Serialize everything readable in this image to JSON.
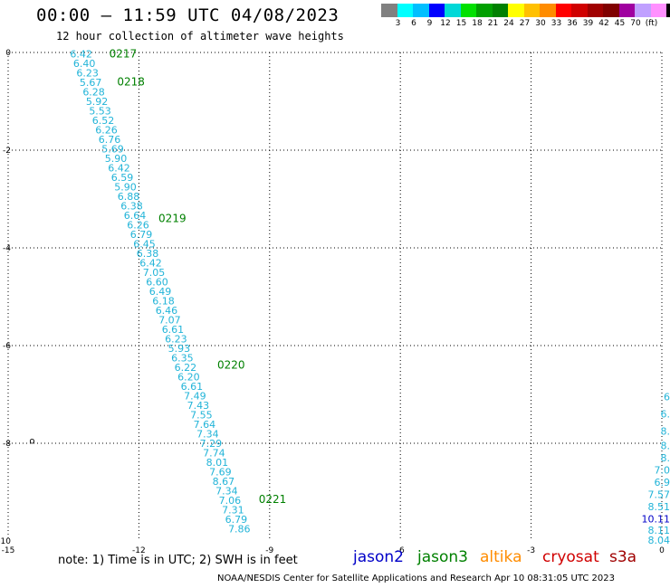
{
  "header": {
    "title": "00:00 – 11:59 UTC 04/08/2023",
    "subtitle": "12 hour collection of altimeter wave heights"
  },
  "colorbar": {
    "colors": [
      "#808080",
      "#00ffff",
      "#00bfff",
      "#0000ff",
      "#00d8d8",
      "#00e000",
      "#00a000",
      "#008000",
      "#ffff00",
      "#ffc000",
      "#ff8c00",
      "#ff0000",
      "#d00000",
      "#a00000",
      "#800000",
      "#a000a0",
      "#c0a0ff",
      "#ff90ff",
      "#000000"
    ],
    "labels": [
      "3",
      "6",
      "9",
      "12",
      "15",
      "18",
      "21",
      "24",
      "27",
      "30",
      "33",
      "36",
      "39",
      "42",
      "45",
      "70",
      "(ft)"
    ]
  },
  "chart_data": {
    "type": "scatter",
    "xlim": [
      -15,
      0
    ],
    "ylim": [
      -10,
      0
    ],
    "x_ticks": [
      "-15",
      "-12",
      "-9",
      "-6",
      "-3",
      "0"
    ],
    "x_tick_values": [
      -15,
      -12,
      -9,
      -6,
      -3,
      0
    ],
    "y_ticks": [
      "0",
      "-2",
      "-4",
      "-6",
      "-8",
      "-10"
    ],
    "y_tick_values": [
      0,
      -2,
      -4,
      -6,
      -8,
      -10
    ],
    "grid": true,
    "track1": {
      "color": "#22b4d8",
      "start": [
        -13.58,
        -0.03
      ],
      "end": [
        -9.95,
        -9.75
      ],
      "values": [
        "6.42",
        "6.40",
        "6.23",
        "5.67",
        "6.28",
        "5.92",
        "5.53",
        "6.52",
        "6.26",
        "6.76",
        "5.69",
        "5.90",
        "6.42",
        "6.59",
        "5.90",
        "6.88",
        "6.38",
        "6.64",
        "6.26",
        "6.79",
        "6.45",
        "6.38",
        "6.42",
        "7.05",
        "6.60",
        "6.49",
        "6.18",
        "6.46",
        "7.07",
        "6.61",
        "6.23",
        "5.93",
        "6.35",
        "6.22",
        "6.20",
        "6.61",
        "7.49",
        "7.43",
        "7.55",
        "7.64",
        "7.34",
        "7.29",
        "7.74",
        "8.01",
        "7.69",
        "8.67",
        "7.34",
        "7.06",
        "7.31",
        "6.79",
        "7.86"
      ]
    },
    "time_labels": [
      {
        "text": "0217",
        "x": -12.68,
        "y": -0.03
      },
      {
        "text": "0218",
        "x": -12.5,
        "y": -0.6
      },
      {
        "text": "0219",
        "x": -11.55,
        "y": -3.4
      },
      {
        "text": "0220",
        "x": -10.2,
        "y": -6.4
      },
      {
        "text": "0221",
        "x": -9.25,
        "y": -9.15
      }
    ],
    "track2": {
      "values": [
        {
          "text": "6",
          "color": "#22b4d8",
          "y": -7.05
        },
        {
          "text": "6.",
          "color": "#22b4d8",
          "y": -7.4
        },
        {
          "text": "8.",
          "color": "#22b4d8",
          "y": -7.75
        },
        {
          "text": "8.",
          "color": "#22b4d8",
          "y": -8.05
        },
        {
          "text": "8.",
          "color": "#22b4d8",
          "y": -8.3
        },
        {
          "text": "7.0",
          "color": "#22b4d8",
          "y": -8.55
        },
        {
          "text": "6.9",
          "color": "#22b4d8",
          "y": -8.8
        },
        {
          "text": "7.57",
          "color": "#22b4d8",
          "y": -9.05
        },
        {
          "text": "8.51",
          "color": "#22b4d8",
          "y": -9.3
        },
        {
          "text": "10.11",
          "color": "#0000c8",
          "y": -9.55
        },
        {
          "text": "8.11",
          "color": "#22b4d8",
          "y": -9.78
        },
        {
          "text": "8.04",
          "color": "#22b4d8",
          "y": -9.98
        }
      ]
    },
    "marker": {
      "text": "o",
      "x": -14.45,
      "y": -7.95
    }
  },
  "footer": {
    "note": "note: 1) Time is in UTC; 2) SWH is in feet",
    "satellites": [
      {
        "name": "jason2",
        "color": "#0000c8"
      },
      {
        "name": "jason3",
        "color": "#008000"
      },
      {
        "name": "altika",
        "color": "#ff8c00"
      },
      {
        "name": "cryosat",
        "color": "#d00000"
      },
      {
        "name": "s3a",
        "color": "#a00000"
      }
    ],
    "credit": "NOAA/NESDIS Center for Satellite Applications and Research    Apr 10 08:31:05 UTC 2023"
  }
}
